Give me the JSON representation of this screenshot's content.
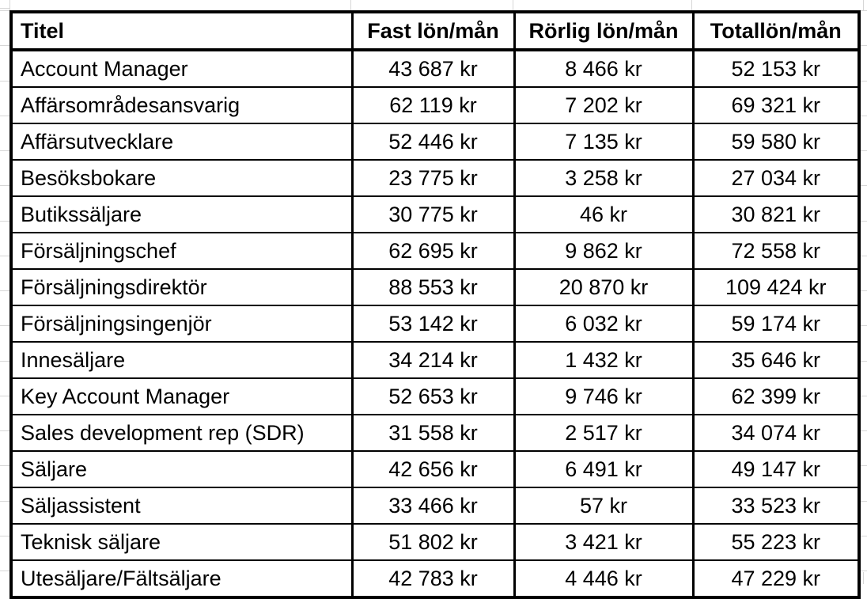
{
  "table": {
    "columns": [
      {
        "label": "Titel",
        "align": "left"
      },
      {
        "label": "Fast lön/mån",
        "align": "center"
      },
      {
        "label": "Rörlig lön/mån",
        "align": "center"
      },
      {
        "label": "Totallön/mån",
        "align": "center"
      }
    ],
    "rows": [
      [
        "Account Manager",
        "43 687 kr",
        "8 466 kr",
        "52 153 kr"
      ],
      [
        "Affärsområdesansvarig",
        "62 119 kr",
        "7 202 kr",
        "69 321 kr"
      ],
      [
        "Affärsutvecklare",
        "52 446 kr",
        "7 135 kr",
        "59 580 kr"
      ],
      [
        "Besöksbokare",
        "23 775 kr",
        "3 258 kr",
        "27 034 kr"
      ],
      [
        "Butikssäljare",
        "30 775 kr",
        "46 kr",
        "30 821 kr"
      ],
      [
        "Försäljningschef",
        "62 695 kr",
        "9 862 kr",
        "72 558 kr"
      ],
      [
        "Försäljningsdirektör",
        "88 553 kr",
        "20 870 kr",
        "109 424 kr"
      ],
      [
        "Försäljningsingenjör",
        "53 142 kr",
        "6 032 kr",
        "59 174 kr"
      ],
      [
        "Innesäljare",
        "34 214 kr",
        "1 432 kr",
        "35 646 kr"
      ],
      [
        "Key Account Manager",
        "52 653 kr",
        "9 746 kr",
        "62 399 kr"
      ],
      [
        "Sales development rep (SDR)",
        "31 558 kr",
        "2 517 kr",
        "34 074 kr"
      ],
      [
        "Säljare",
        "42 656 kr",
        "6 491 kr",
        "49 147 kr"
      ],
      [
        "Säljassistent",
        "33 466 kr",
        "57 kr",
        "33 523 kr"
      ],
      [
        "Teknisk säljare",
        "51 802 kr",
        "3 421 kr",
        "55 223 kr"
      ],
      [
        "Utesäljare/Fältsäljare",
        "42 783 kr",
        "4 446 kr",
        "47 229 kr"
      ]
    ]
  },
  "colors": {
    "table_border": "#000000",
    "gridline": "#d6d6d6",
    "background": "#ffffff",
    "text": "#000000"
  }
}
